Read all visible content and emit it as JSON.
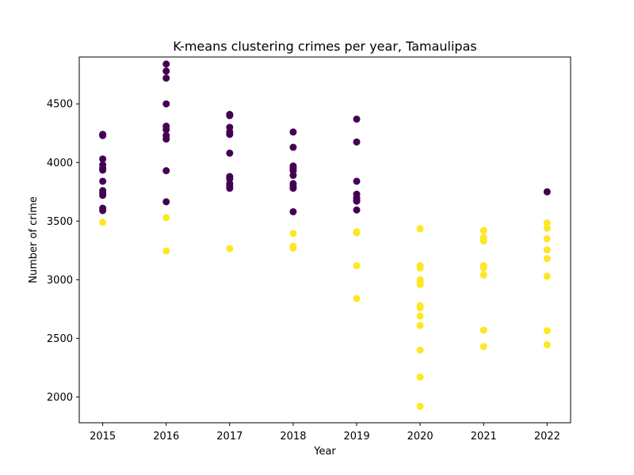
{
  "chart_data": {
    "type": "scatter",
    "title": "K-means clustering crimes per year, Tamaulipas",
    "xlabel": "Year",
    "ylabel": "Number of crime",
    "xlim": [
      2014.63,
      2022.37
    ],
    "ylim": [
      1780,
      4900
    ],
    "xticks": [
      2015,
      2016,
      2017,
      2018,
      2019,
      2020,
      2021,
      2022
    ],
    "yticks": [
      2000,
      2500,
      3000,
      3500,
      4000,
      4500
    ],
    "grid": false,
    "legend": "none",
    "series": [
      {
        "color": "#440154",
        "points": [
          [
            2015,
            4240
          ],
          [
            2015,
            4230
          ],
          [
            2015,
            4030
          ],
          [
            2015,
            3980
          ],
          [
            2015,
            3950
          ],
          [
            2015,
            3935
          ],
          [
            2015,
            3840
          ],
          [
            2015,
            3760
          ],
          [
            2015,
            3740
          ],
          [
            2015,
            3720
          ],
          [
            2015,
            3610
          ],
          [
            2015,
            3590
          ],
          [
            2016,
            4840
          ],
          [
            2016,
            4780
          ],
          [
            2016,
            4720
          ],
          [
            2016,
            4500
          ],
          [
            2016,
            4310
          ],
          [
            2016,
            4280
          ],
          [
            2016,
            4230
          ],
          [
            2016,
            4200
          ],
          [
            2016,
            3930
          ],
          [
            2016,
            3665
          ],
          [
            2017,
            4410
          ],
          [
            2017,
            4400
          ],
          [
            2017,
            4300
          ],
          [
            2017,
            4260
          ],
          [
            2017,
            4240
          ],
          [
            2017,
            4080
          ],
          [
            2017,
            3880
          ],
          [
            2017,
            3860
          ],
          [
            2017,
            3820
          ],
          [
            2017,
            3800
          ],
          [
            2017,
            3780
          ],
          [
            2018,
            4260
          ],
          [
            2018,
            4130
          ],
          [
            2018,
            3970
          ],
          [
            2018,
            3950
          ],
          [
            2018,
            3930
          ],
          [
            2018,
            3890
          ],
          [
            2018,
            3820
          ],
          [
            2018,
            3800
          ],
          [
            2018,
            3780
          ],
          [
            2018,
            3580
          ],
          [
            2019,
            4370
          ],
          [
            2019,
            4175
          ],
          [
            2019,
            3840
          ],
          [
            2019,
            3730
          ],
          [
            2019,
            3700
          ],
          [
            2019,
            3680
          ],
          [
            2019,
            3670
          ],
          [
            2019,
            3595
          ],
          [
            2022,
            3750
          ]
        ]
      },
      {
        "color": "#fde725",
        "points": [
          [
            2015,
            3490
          ],
          [
            2016,
            3530
          ],
          [
            2016,
            3245
          ],
          [
            2017,
            3265
          ],
          [
            2018,
            3395
          ],
          [
            2018,
            3285
          ],
          [
            2018,
            3270
          ],
          [
            2019,
            3410
          ],
          [
            2019,
            3400
          ],
          [
            2019,
            3120
          ],
          [
            2019,
            2840
          ],
          [
            2020,
            3435
          ],
          [
            2020,
            3120
          ],
          [
            2020,
            3100
          ],
          [
            2020,
            3000
          ],
          [
            2020,
            2980
          ],
          [
            2020,
            2960
          ],
          [
            2020,
            2780
          ],
          [
            2020,
            2760
          ],
          [
            2020,
            2690
          ],
          [
            2020,
            2610
          ],
          [
            2020,
            2400
          ],
          [
            2020,
            2170
          ],
          [
            2020,
            1920
          ],
          [
            2021,
            3420
          ],
          [
            2021,
            3360
          ],
          [
            2021,
            3330
          ],
          [
            2021,
            3120
          ],
          [
            2021,
            3100
          ],
          [
            2021,
            3040
          ],
          [
            2021,
            2570
          ],
          [
            2021,
            2430
          ],
          [
            2022,
            3485
          ],
          [
            2022,
            3440
          ],
          [
            2022,
            3350
          ],
          [
            2022,
            3255
          ],
          [
            2022,
            3180
          ],
          [
            2022,
            3030
          ],
          [
            2022,
            2565
          ],
          [
            2022,
            2445
          ]
        ]
      }
    ]
  }
}
